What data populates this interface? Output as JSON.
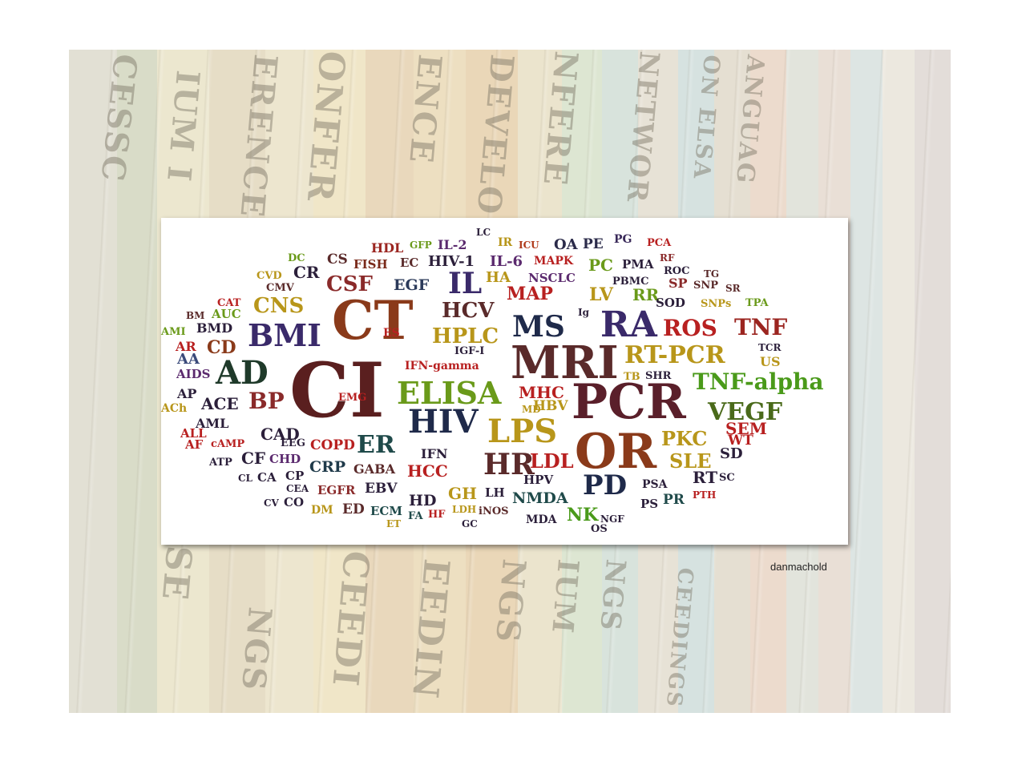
{
  "background": {
    "spine_texts": [
      "CESSC",
      "IUM I",
      "ERENCE",
      "ONFER",
      "ENCE",
      "DEVELO",
      "NFERE",
      "NETWOR",
      "ON ELSA",
      "ANGUAG",
      "S (SE",
      "NGS",
      "CEEDI",
      "EEDIN",
      "NGS",
      "IUM",
      "NGS",
      "CEEDINGS"
    ]
  },
  "word_cloud": {
    "words": [
      {
        "text": "LC",
        "color": "#2b1f3a"
      },
      {
        "text": "HDL",
        "color": "#9b2520"
      },
      {
        "text": "GFP",
        "color": "#6a9a1a"
      },
      {
        "text": "IL-2",
        "color": "#5b2a6e"
      },
      {
        "text": "IR",
        "color": "#b8961a"
      },
      {
        "text": "ICU",
        "color": "#b03a1a"
      },
      {
        "text": "OA",
        "color": "#2b2b4a"
      },
      {
        "text": "PE",
        "color": "#2b2b4a"
      },
      {
        "text": "PG",
        "color": "#3a2a5a"
      },
      {
        "text": "PCA",
        "color": "#b82020"
      },
      {
        "text": "DC",
        "color": "#6a9a1a"
      },
      {
        "text": "CS",
        "color": "#5a2a2a"
      },
      {
        "text": "FISH",
        "color": "#7a2a1a"
      },
      {
        "text": "EC",
        "color": "#5a2a2a"
      },
      {
        "text": "HIV-1",
        "color": "#2b1f3a"
      },
      {
        "text": "IL-6",
        "color": "#5b2a6e"
      },
      {
        "text": "MAPK",
        "color": "#b82020"
      },
      {
        "text": "RF",
        "color": "#8a2a2a"
      },
      {
        "text": "CVD",
        "color": "#b8961a"
      },
      {
        "text": "CR",
        "color": "#2b1f3a"
      },
      {
        "text": "PC",
        "color": "#6a9a1a"
      },
      {
        "text": "PMA",
        "color": "#2b1f3a"
      },
      {
        "text": "ROC",
        "color": "#2b1f3a"
      },
      {
        "text": "TG",
        "color": "#5a2a2a"
      },
      {
        "text": "CMV",
        "color": "#5a2a2a"
      },
      {
        "text": "CSF",
        "color": "#8a2a2a"
      },
      {
        "text": "EGF",
        "color": "#2b3a5a"
      },
      {
        "text": "IL",
        "color": "#3a2a6a"
      },
      {
        "text": "HA",
        "color": "#b8961a"
      },
      {
        "text": "NSCLC",
        "color": "#5b2a6e"
      },
      {
        "text": "PBMC",
        "color": "#2b1f3a"
      },
      {
        "text": "SP",
        "color": "#8a2a2a"
      },
      {
        "text": "SNP",
        "color": "#5a2a2a"
      },
      {
        "text": "SR",
        "color": "#5a2a2a"
      },
      {
        "text": "CAT",
        "color": "#b82020"
      },
      {
        "text": "MAP",
        "color": "#b82020"
      },
      {
        "text": "LV",
        "color": "#b8961a"
      },
      {
        "text": "RR",
        "color": "#6a9a1a"
      },
      {
        "text": "SOD",
        "color": "#2b1f3a"
      },
      {
        "text": "SNPs",
        "color": "#b8961a"
      },
      {
        "text": "TPA",
        "color": "#6a9a1a"
      },
      {
        "text": "BM",
        "color": "#5a2a2a"
      },
      {
        "text": "AUC",
        "color": "#6a9a1a"
      },
      {
        "text": "CNS",
        "color": "#b8961a"
      },
      {
        "text": "CT",
        "color": "#8a3a1a"
      },
      {
        "text": "HCV",
        "color": "#5a2a2a"
      },
      {
        "text": "Ig",
        "color": "#2b1f3a"
      },
      {
        "text": "MS",
        "color": "#1f2a4a"
      },
      {
        "text": "RA",
        "color": "#3a2a6a"
      },
      {
        "text": "ROS",
        "color": "#b82020"
      },
      {
        "text": "TNF",
        "color": "#9b2520"
      },
      {
        "text": "AMI",
        "color": "#6a9a1a"
      },
      {
        "text": "BMD",
        "color": "#2b1f3a"
      },
      {
        "text": "BMI",
        "color": "#3a2a6a"
      },
      {
        "text": "ES",
        "color": "#b82020"
      },
      {
        "text": "HPLC",
        "color": "#b8961a"
      },
      {
        "text": "AR",
        "color": "#b82020"
      },
      {
        "text": "CD",
        "color": "#8a3a1a"
      },
      {
        "text": "IGF-I",
        "color": "#2b1f3a"
      },
      {
        "text": "MRI",
        "color": "#5a2a2a"
      },
      {
        "text": "RT-PCR",
        "color": "#b8961a"
      },
      {
        "text": "TCR",
        "color": "#2b1f3a"
      },
      {
        "text": "AA",
        "color": "#3a4a7a"
      },
      {
        "text": "AD",
        "color": "#1f3a2a"
      },
      {
        "text": "US",
        "color": "#b8961a"
      },
      {
        "text": "AIDS",
        "color": "#5b2a6e"
      },
      {
        "text": "IFN-gamma",
        "color": "#b82020"
      },
      {
        "text": "TB",
        "color": "#b8961a"
      },
      {
        "text": "SHR",
        "color": "#2b1f3a"
      },
      {
        "text": "TNF-alpha",
        "color": "#4a9a1a"
      },
      {
        "text": "CI",
        "color": "#5a1f1f"
      },
      {
        "text": "ELISA",
        "color": "#6a9a1a"
      },
      {
        "text": "AP",
        "color": "#2b1f3a"
      },
      {
        "text": "EMG",
        "color": "#b82020"
      },
      {
        "text": "MHC",
        "color": "#b82020"
      },
      {
        "text": "PCR",
        "color": "#5a1f2a"
      },
      {
        "text": "ACh",
        "color": "#b8961a"
      },
      {
        "text": "ACE",
        "color": "#2b1f3a"
      },
      {
        "text": "BP",
        "color": "#8a2a2a"
      },
      {
        "text": "MD",
        "color": "#b8961a"
      },
      {
        "text": "HBV",
        "color": "#b8961a"
      },
      {
        "text": "VEGF",
        "color": "#4a6a1a"
      },
      {
        "text": "AML",
        "color": "#2b1f3a"
      },
      {
        "text": "HIV",
        "color": "#1f2a4a"
      },
      {
        "text": "LPS",
        "color": "#b8961a"
      },
      {
        "text": "SEM",
        "color": "#b82020"
      },
      {
        "text": "ALL",
        "color": "#b82020"
      },
      {
        "text": "CAD",
        "color": "#2b1f3a"
      },
      {
        "text": "OR",
        "color": "#8a3a1a"
      },
      {
        "text": "PKC",
        "color": "#b8961a"
      },
      {
        "text": "WT",
        "color": "#b82020"
      },
      {
        "text": "AF",
        "color": "#b82020"
      },
      {
        "text": "cAMP",
        "color": "#b82020"
      },
      {
        "text": "EEG",
        "color": "#2b1f3a"
      },
      {
        "text": "ER",
        "color": "#1f4a4a"
      },
      {
        "text": "COPD",
        "color": "#b82020"
      },
      {
        "text": "SD",
        "color": "#2b1f3a"
      },
      {
        "text": "ATP",
        "color": "#2b1f3a"
      },
      {
        "text": "CF",
        "color": "#2b1f3a"
      },
      {
        "text": "CHD",
        "color": "#5b2a6e"
      },
      {
        "text": "IFN",
        "color": "#2b1f3a"
      },
      {
        "text": "HR",
        "color": "#5a2a2a"
      },
      {
        "text": "LDL",
        "color": "#b82020"
      },
      {
        "text": "SLE",
        "color": "#b8961a"
      },
      {
        "text": "CRP",
        "color": "#1f3a4a"
      },
      {
        "text": "GABA",
        "color": "#5a2a2a"
      },
      {
        "text": "HCC",
        "color": "#b82020"
      },
      {
        "text": "HPV",
        "color": "#2b1f3a"
      },
      {
        "text": "RT",
        "color": "#2b1f3a"
      },
      {
        "text": "SC",
        "color": "#2b1f3a"
      },
      {
        "text": "CL",
        "color": "#2b1f3a"
      },
      {
        "text": "CA",
        "color": "#2b1f3a"
      },
      {
        "text": "CP",
        "color": "#2b1f3a"
      },
      {
        "text": "PD",
        "color": "#1f2a4a"
      },
      {
        "text": "PSA",
        "color": "#2b1f3a"
      },
      {
        "text": "CEA",
        "color": "#2b1f3a"
      },
      {
        "text": "EGFR",
        "color": "#8a2a2a"
      },
      {
        "text": "EBV",
        "color": "#2b1f3a"
      },
      {
        "text": "GH",
        "color": "#b8961a"
      },
      {
        "text": "LH",
        "color": "#2b1f3a"
      },
      {
        "text": "PTH",
        "color": "#b82020"
      },
      {
        "text": "CV",
        "color": "#2b1f3a"
      },
      {
        "text": "CO",
        "color": "#2b1f3a"
      },
      {
        "text": "HD",
        "color": "#2b1f3a"
      },
      {
        "text": "NMDA",
        "color": "#1f4a4a"
      },
      {
        "text": "PS",
        "color": "#2b1f3a"
      },
      {
        "text": "PR",
        "color": "#1f4a4a"
      },
      {
        "text": "DM",
        "color": "#b8961a"
      },
      {
        "text": "ED",
        "color": "#5a2a2a"
      },
      {
        "text": "ECM",
        "color": "#1f4a4a"
      },
      {
        "text": "FA",
        "color": "#1f4a4a"
      },
      {
        "text": "HF",
        "color": "#b82020"
      },
      {
        "text": "LDH",
        "color": "#b8961a"
      },
      {
        "text": "iNOS",
        "color": "#5a2a2a"
      },
      {
        "text": "NK",
        "color": "#4a9a1a"
      },
      {
        "text": "NGF",
        "color": "#2b1f3a"
      },
      {
        "text": "ET",
        "color": "#b8961a"
      },
      {
        "text": "GC",
        "color": "#2b1f3a"
      },
      {
        "text": "MDA",
        "color": "#2b1f3a"
      },
      {
        "text": "OS",
        "color": "#2b1f3a"
      }
    ]
  },
  "credit": "danmachold"
}
